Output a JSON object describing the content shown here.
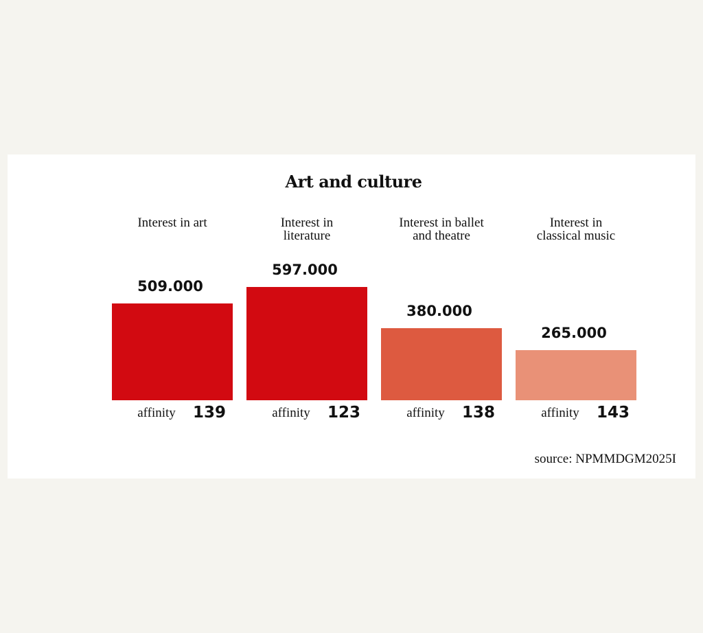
{
  "chart_data": {
    "type": "bar",
    "title": "Art and culture",
    "categories": [
      "Interest in art",
      "Interest in\nliterature",
      "Interest in ballet\nand theatre",
      "Interest in\nclassical music"
    ],
    "values": [
      509000,
      597000,
      380000,
      265000
    ],
    "value_labels": [
      "509.000",
      "597.000",
      "380.000",
      "265.000"
    ],
    "affinity_label": "affinity",
    "affinity": [
      139,
      123,
      138,
      143
    ],
    "bar_colors": [
      "#d20a11",
      "#d20a11",
      "#dd5a40",
      "#e99177"
    ],
    "ylim": [
      0,
      597000
    ],
    "source": "source: NPMMDGM2025I"
  }
}
